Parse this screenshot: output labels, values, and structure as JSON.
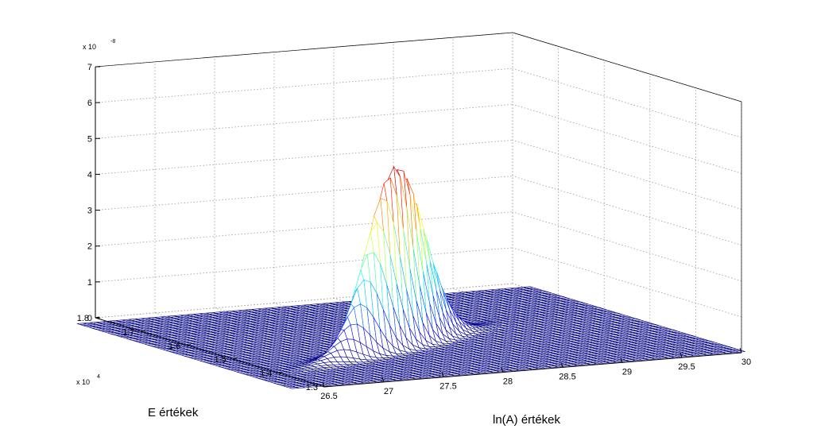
{
  "chart_data": {
    "type": "surface",
    "title": "",
    "xlabel": "ln(A) értékek",
    "ylabel": "E értékek",
    "zlabel": "",
    "x_ticks": [
      "26.5",
      "27",
      "27.5",
      "28",
      "28.5",
      "29",
      "29.5",
      "30"
    ],
    "y_ticks": [
      "1.3",
      "1.4",
      "1.5",
      "1.6",
      "1.7",
      "1.8"
    ],
    "z_ticks": [
      "0",
      "1",
      "2",
      "3",
      "4",
      "5",
      "6",
      "7"
    ],
    "y_multiplier": {
      "base": "x 10",
      "exp": "4"
    },
    "z_multiplier": {
      "base": "x 10",
      "exp": "-8"
    },
    "xlim": [
      26.5,
      30
    ],
    "ylim": [
      13000,
      18000
    ],
    "zlim": [
      0,
      7e-08
    ],
    "surface": {
      "function": "bivariate_gaussian",
      "peak_x": 27.85,
      "peak_y": 14950,
      "peak_z": 5.05e-08,
      "sigma_x": 0.33,
      "sigma_y": 270,
      "rho": 0.9,
      "x_range": [
        26.25,
        30.05
      ],
      "y_range": [
        13050,
        17750
      ],
      "colormap": "jet"
    },
    "grid": true
  }
}
